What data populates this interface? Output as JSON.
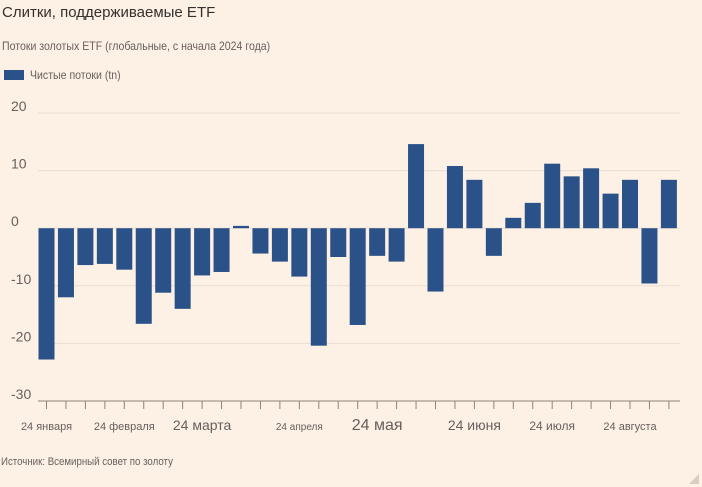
{
  "chart_data": {
    "type": "bar",
    "title": "Слитки, поддерживаемые ETF",
    "subtitle": "Потоки золотых ETF (глобальные, с начала 2024 года)",
    "legend": [
      {
        "name": "Чистые потоки (tn)",
        "color": "#2a5288"
      }
    ],
    "source": "Источник: Всемирный совет по золоту",
    "ylim": [
      -30,
      20
    ],
    "yticks": [
      20,
      10,
      0,
      -10,
      -20,
      -30
    ],
    "ytick_labels": [
      "20",
      "10",
      "0",
      "-10",
      "-20",
      "-30"
    ],
    "series": [
      {
        "name": "Чистые потоки (tn)",
        "values": [
          -22.8,
          -12,
          -6.4,
          -6.2,
          -7.2,
          -16.6,
          -11.2,
          -14,
          -8.2,
          -7.6,
          0.4,
          -4.4,
          -5.8,
          -8.4,
          -20.4,
          -5,
          -16.8,
          -4.8,
          -5.8,
          14.6,
          -11,
          10.8,
          8.4,
          -4.8,
          1.8,
          4.4,
          11.2,
          9,
          10.4,
          6,
          8.4,
          -9.6,
          8.4
        ]
      }
    ],
    "xtick_labels": [
      {
        "label": "24 января",
        "index": 0,
        "size": "small"
      },
      {
        "label": "24 февраля",
        "index": 4,
        "size": "small"
      },
      {
        "label": "24 марта",
        "index": 8,
        "size": "large"
      },
      {
        "label": "24 апреля",
        "index": 13,
        "size": "xsmall"
      },
      {
        "label": "24 мая",
        "index": 17,
        "size": "xlarge"
      },
      {
        "label": "24 июня",
        "index": 22,
        "size": "large"
      },
      {
        "label": "24 июля",
        "index": 26,
        "size": "medium"
      },
      {
        "label": "24 августа",
        "index": 30,
        "size": "small"
      }
    ],
    "grid": true
  }
}
